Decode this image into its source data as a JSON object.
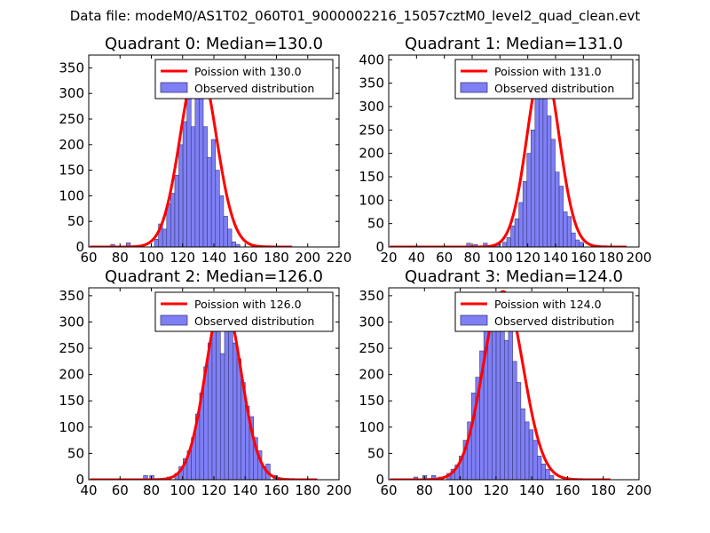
{
  "figure_title": "Data file: modeM0/AS1T02_060T01_9000002216_15057cztM0_level2_quad_clean.evt",
  "colors": {
    "hist_fill": "#7f7ff5",
    "hist_edge": "#3a3a7a",
    "poisson": "#ff0000",
    "axes": "#000000"
  },
  "chart_data": [
    {
      "type": "bar",
      "title": "Quadrant 0: Median=130.0",
      "median": 130.0,
      "xlim": [
        60,
        220
      ],
      "ylim": [
        0,
        375
      ],
      "xticks": [
        60,
        80,
        100,
        120,
        140,
        160,
        180,
        200,
        220
      ],
      "yticks": [
        0,
        50,
        100,
        150,
        200,
        250,
        300,
        350
      ],
      "legend": {
        "placement": "upper right",
        "line_label": "Poission with 130.0",
        "bar_label": "Observed distribution"
      },
      "bin_width": 2.6,
      "bins_left": [
        74,
        84,
        102,
        104.6,
        107.2,
        109.8,
        112.4,
        115,
        117.6,
        120.2,
        122.8,
        125.4,
        128,
        130.6,
        133.2,
        135.8,
        138.4,
        141,
        143.6,
        146.2,
        148.8,
        151.4,
        154
      ],
      "counts": [
        5,
        8,
        15,
        45,
        35,
        85,
        105,
        140,
        200,
        245,
        300,
        235,
        355,
        330,
        235,
        175,
        210,
        150,
        100,
        60,
        35,
        10,
        5
      ],
      "poisson_peak": 362
    },
    {
      "type": "bar",
      "title": "Quadrant 1: Median=131.0",
      "median": 131.0,
      "xlim": [
        20,
        200
      ],
      "ylim": [
        0,
        410
      ],
      "xticks": [
        20,
        40,
        60,
        80,
        100,
        120,
        140,
        160,
        180,
        200
      ],
      "yticks": [
        0,
        50,
        100,
        150,
        200,
        250,
        300,
        350,
        400
      ],
      "legend": {
        "placement": "upper right",
        "line_label": "Poission with 131.0",
        "bar_label": "Observed distribution"
      },
      "bin_width": 2.9,
      "bins_left": [
        76,
        81,
        88,
        97,
        102,
        104.9,
        107.8,
        110.7,
        113.6,
        116.5,
        119.4,
        122.3,
        125.2,
        128.1,
        131,
        133.9,
        136.8,
        139.7,
        142.6,
        145.5,
        148.4,
        151.3,
        154.2,
        157.1
      ],
      "counts": [
        8,
        5,
        8,
        5,
        10,
        20,
        45,
        60,
        95,
        140,
        200,
        250,
        355,
        380,
        330,
        280,
        230,
        160,
        130,
        75,
        65,
        30,
        15,
        10
      ],
      "poisson_peak": 395
    },
    {
      "type": "bar",
      "title": "Quadrant 2: Median=126.0",
      "median": 126.0,
      "xlim": [
        40,
        200
      ],
      "ylim": [
        0,
        365
      ],
      "xticks": [
        40,
        60,
        80,
        100,
        120,
        140,
        160,
        180,
        200
      ],
      "yticks": [
        0,
        50,
        100,
        150,
        200,
        250,
        300,
        350
      ],
      "legend": {
        "placement": "upper right",
        "line_label": "Poission with 126.0",
        "bar_label": "Observed distribution"
      },
      "bin_width": 2.65,
      "bins_left": [
        75,
        79,
        90,
        95,
        97.65,
        100.3,
        102.95,
        105.6,
        108.25,
        110.9,
        113.55,
        116.2,
        118.85,
        121.5,
        124.15,
        126.8,
        129.45,
        132.1,
        134.75,
        137.4,
        140.05,
        142.7,
        145.35,
        148,
        150.65,
        153.3,
        158
      ],
      "counts": [
        8,
        8,
        5,
        12,
        25,
        40,
        55,
        80,
        125,
        165,
        215,
        260,
        310,
        345,
        240,
        330,
        305,
        260,
        230,
        185,
        140,
        120,
        80,
        55,
        25,
        30,
        8
      ],
      "poisson_peak": 345
    },
    {
      "type": "bar",
      "title": "Quadrant 3: Median=124.0",
      "median": 124.0,
      "xlim": [
        60,
        200
      ],
      "ylim": [
        0,
        365
      ],
      "xticks": [
        60,
        80,
        100,
        120,
        140,
        160,
        180,
        200
      ],
      "yticks": [
        0,
        50,
        100,
        150,
        200,
        250,
        300,
        350
      ],
      "legend": {
        "placement": "upper right",
        "line_label": "Poission with 124.0",
        "bar_label": "Observed distribution"
      },
      "bin_width": 2.3,
      "bins_left": [
        74,
        79,
        84,
        88,
        92.5,
        94.8,
        97.1,
        99.4,
        101.7,
        104,
        106.3,
        108.6,
        110.9,
        113.2,
        115.5,
        117.8,
        120.1,
        122.4,
        124.7,
        127,
        129.3,
        131.6,
        133.9,
        136.2,
        138.5,
        140.8,
        143.1,
        145.4,
        147.7,
        150
      ],
      "counts": [
        5,
        8,
        8,
        5,
        12,
        20,
        28,
        45,
        75,
        110,
        165,
        195,
        245,
        320,
        300,
        345,
        345,
        335,
        265,
        295,
        225,
        185,
        135,
        110,
        95,
        75,
        45,
        30,
        20,
        8
      ],
      "poisson_peak": 358
    }
  ]
}
